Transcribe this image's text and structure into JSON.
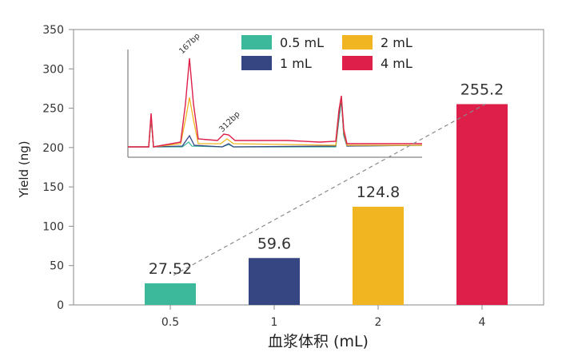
{
  "chart_data": {
    "type": "bar",
    "categories": [
      "0.5",
      "1",
      "2",
      "4"
    ],
    "values": [
      27.52,
      59.6,
      124.8,
      255.2
    ],
    "data_labels": [
      "27.52",
      "59.6",
      "124.8",
      "255.2"
    ],
    "colors": [
      "#3cb89a",
      "#354683",
      "#f0b520",
      "#dd1f4a"
    ],
    "xlabel": "血浆体积 (mL)",
    "ylabel": "Yield (ng)",
    "ylim": [
      0,
      350
    ],
    "yticks": [
      0,
      50,
      100,
      150,
      200,
      250,
      300,
      350
    ],
    "legend": {
      "placement": "top-center",
      "entries": [
        {
          "label": "0.5 mL",
          "color": "#3cb89a"
        },
        {
          "label": "1 mL",
          "color": "#354683"
        },
        {
          "label": "2 mL",
          "color": "#f0b520"
        },
        {
          "label": "4 mL",
          "color": "#dd1f4a"
        }
      ]
    },
    "inset": {
      "type": "line",
      "description_labels": [
        "167bp",
        "312bp"
      ]
    }
  }
}
